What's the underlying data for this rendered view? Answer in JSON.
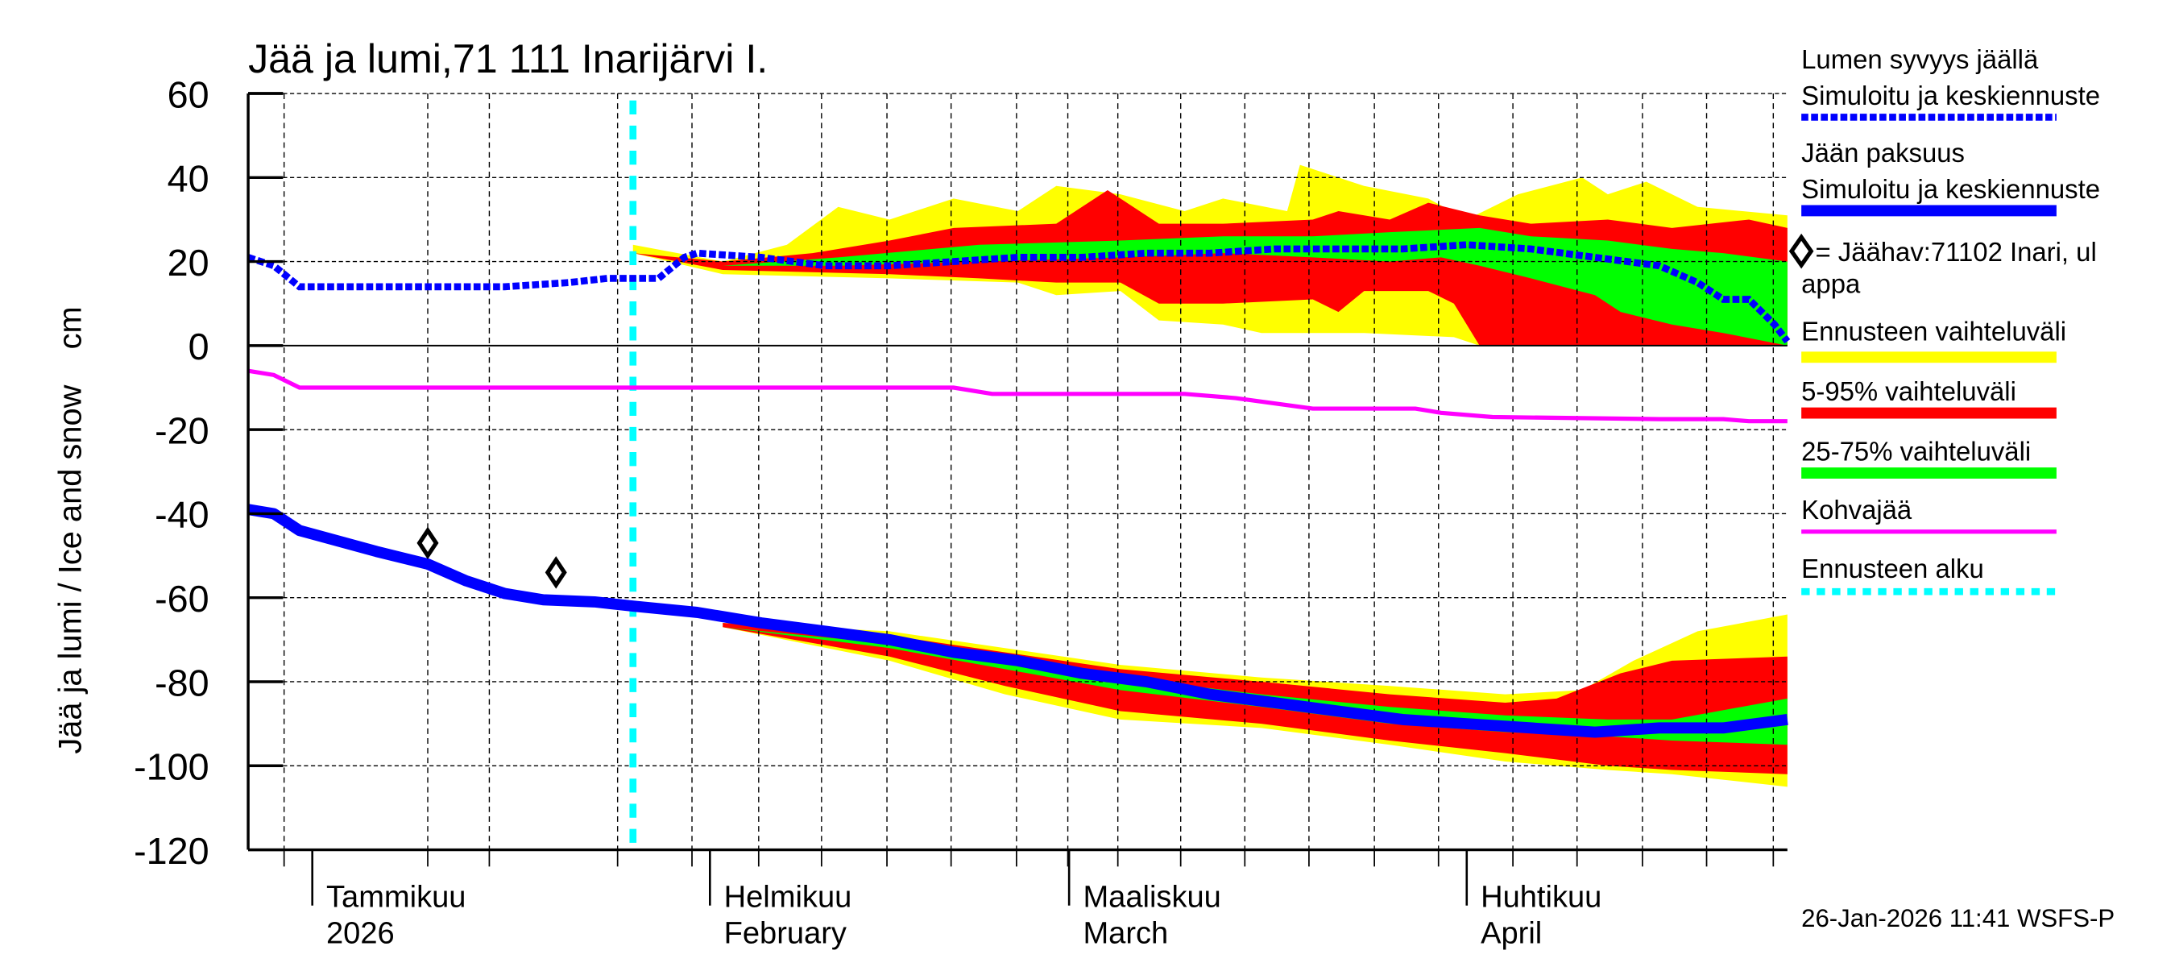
{
  "chart_data": {
    "type": "area",
    "title": "Jää ja lumi,71 111 Inarijärvi I.",
    "ylabel": "Jää ja lumi / Ice and snow    cm",
    "xlabel": "",
    "x_unit": "days from 1 Jan 2026",
    "xlim": [
      -5,
      115
    ],
    "ylim": [
      -120,
      60
    ],
    "yticks": [
      60,
      40,
      20,
      0,
      -20,
      -40,
      -60,
      -80,
      -100,
      -120
    ],
    "grid": true,
    "forecast_start_day": 25,
    "months": [
      {
        "day": 0,
        "fi": "Tammikuu",
        "en": "2026"
      },
      {
        "day": 31,
        "fi": "Helmikuu",
        "en": "February"
      },
      {
        "day": 59,
        "fi": "Maaliskuu",
        "en": "March"
      },
      {
        "day": 90,
        "fi": "Huhtikuu",
        "en": "April"
      }
    ],
    "series": {
      "snow_depth": {
        "name": "Lumen syvyys jäällä – Simuloitu ja keskiennuste",
        "color": "#0000ff",
        "points": [
          [
            -5,
            21
          ],
          [
            -3,
            19
          ],
          [
            -1,
            14
          ],
          [
            5,
            14
          ],
          [
            15,
            14
          ],
          [
            20,
            15
          ],
          [
            23,
            16
          ],
          [
            27,
            16
          ],
          [
            29,
            21
          ],
          [
            30,
            22
          ],
          [
            35,
            21
          ],
          [
            40,
            19
          ],
          [
            45,
            19
          ],
          [
            50,
            20
          ],
          [
            55,
            21
          ],
          [
            60,
            21
          ],
          [
            65,
            22
          ],
          [
            70,
            22
          ],
          [
            75,
            23
          ],
          [
            80,
            23
          ],
          [
            85,
            23
          ],
          [
            90,
            24
          ],
          [
            95,
            23
          ],
          [
            100,
            21
          ],
          [
            105,
            19
          ],
          [
            108,
            15
          ],
          [
            110,
            11
          ],
          [
            112,
            11
          ],
          [
            114,
            5
          ],
          [
            115,
            1
          ]
        ]
      },
      "ice_thickness": {
        "name": "Jään paksuus – Simuloitu ja keskiennuste",
        "color": "#0000ff",
        "points": [
          [
            -5,
            -39
          ],
          [
            -3,
            -40
          ],
          [
            -1,
            -44
          ],
          [
            5,
            -49
          ],
          [
            9,
            -52
          ],
          [
            12,
            -56
          ],
          [
            15,
            -59
          ],
          [
            18,
            -60.5
          ],
          [
            22,
            -61
          ],
          [
            25,
            -62
          ],
          [
            30,
            -63.5
          ],
          [
            35,
            -66
          ],
          [
            40,
            -68
          ],
          [
            45,
            -70
          ],
          [
            50,
            -73
          ],
          [
            55,
            -75
          ],
          [
            60,
            -78
          ],
          [
            65,
            -80
          ],
          [
            70,
            -83
          ],
          [
            75,
            -85
          ],
          [
            80,
            -87
          ],
          [
            85,
            -89
          ],
          [
            90,
            -90
          ],
          [
            95,
            -91
          ],
          [
            100,
            -92
          ],
          [
            105,
            -91
          ],
          [
            110,
            -91
          ],
          [
            115,
            -89
          ]
        ]
      },
      "slush_ice": {
        "name": "Kohvajää",
        "color": "#ff00ff",
        "points": [
          [
            -5,
            -6
          ],
          [
            -3,
            -7
          ],
          [
            -1,
            -10
          ],
          [
            50,
            -10
          ],
          [
            53,
            -11.5
          ],
          [
            68,
            -11.5
          ],
          [
            72,
            -12.5
          ],
          [
            78,
            -15
          ],
          [
            86,
            -15
          ],
          [
            88,
            -16
          ],
          [
            92,
            -17
          ],
          [
            105,
            -17.5
          ],
          [
            110,
            -17.5
          ],
          [
            112,
            -18
          ],
          [
            115,
            -18
          ]
        ]
      },
      "observations": {
        "name": "Jäähav:71102 Inari, ulappa",
        "points": [
          [
            9,
            -47
          ],
          [
            19,
            -54
          ]
        ]
      }
    },
    "bands": [
      {
        "name": "Ennusteen vaihteluväli",
        "group": "snow",
        "color": "#ffff00",
        "upper": [
          [
            25,
            24
          ],
          [
            32,
            20
          ],
          [
            37,
            24
          ],
          [
            41,
            33
          ],
          [
            45,
            30
          ],
          [
            50,
            35
          ],
          [
            55,
            32
          ],
          [
            58,
            38
          ],
          [
            63,
            36
          ],
          [
            68,
            32
          ],
          [
            71,
            35
          ],
          [
            76,
            32
          ],
          [
            77,
            43
          ],
          [
            82,
            38
          ],
          [
            87,
            35
          ],
          [
            90,
            30
          ],
          [
            94,
            36
          ],
          [
            99,
            40
          ],
          [
            101,
            36
          ],
          [
            104,
            39
          ],
          [
            108,
            33
          ],
          [
            115,
            31
          ]
        ],
        "lower": [
          [
            25,
            22
          ],
          [
            32,
            17
          ],
          [
            45,
            16
          ],
          [
            55,
            15
          ],
          [
            58,
            12
          ],
          [
            63,
            13
          ],
          [
            66,
            6
          ],
          [
            71,
            5
          ],
          [
            74,
            3
          ],
          [
            82,
            3
          ],
          [
            89,
            2
          ],
          [
            91,
            0
          ],
          [
            115,
            0
          ]
        ]
      },
      {
        "name": "5-95% vaihteluväli",
        "group": "snow",
        "color": "#ff0000",
        "upper": [
          [
            25,
            22
          ],
          [
            32,
            20
          ],
          [
            39,
            22
          ],
          [
            45,
            25
          ],
          [
            50,
            28
          ],
          [
            58,
            29
          ],
          [
            62,
            37
          ],
          [
            66,
            29
          ],
          [
            71,
            29
          ],
          [
            78,
            30
          ],
          [
            80,
            32
          ],
          [
            84,
            30
          ],
          [
            87,
            34
          ],
          [
            91,
            31
          ],
          [
            95,
            29
          ],
          [
            101,
            30
          ],
          [
            106,
            28
          ],
          [
            112,
            30
          ],
          [
            115,
            28
          ]
        ],
        "lower": [
          [
            25,
            22
          ],
          [
            32,
            18
          ],
          [
            45,
            17
          ],
          [
            52,
            16
          ],
          [
            58,
            15
          ],
          [
            63,
            15
          ],
          [
            66,
            10
          ],
          [
            71,
            10
          ],
          [
            78,
            11
          ],
          [
            80,
            8
          ],
          [
            82,
            13
          ],
          [
            87,
            13
          ],
          [
            89,
            10
          ],
          [
            91,
            0
          ],
          [
            115,
            0
          ]
        ]
      },
      {
        "name": "25-75% vaihteluväli",
        "group": "snow",
        "color": "#00ff00",
        "upper": [
          [
            32,
            19
          ],
          [
            41,
            21
          ],
          [
            52,
            24
          ],
          [
            63,
            25
          ],
          [
            71,
            26
          ],
          [
            78,
            26
          ],
          [
            84,
            27
          ],
          [
            91,
            28
          ],
          [
            95,
            26
          ],
          [
            101,
            25
          ],
          [
            106,
            23
          ],
          [
            110,
            22
          ],
          [
            115,
            20
          ]
        ],
        "lower": [
          [
            32,
            19
          ],
          [
            41,
            19
          ],
          [
            52,
            20
          ],
          [
            63,
            21
          ],
          [
            71,
            22
          ],
          [
            78,
            21
          ],
          [
            84,
            20
          ],
          [
            88,
            21
          ],
          [
            91,
            19
          ],
          [
            95,
            16
          ],
          [
            100,
            12
          ],
          [
            102,
            8
          ],
          [
            106,
            5
          ],
          [
            110,
            3
          ],
          [
            115,
            0
          ]
        ]
      },
      {
        "name": "Ennusteen vaihteluväli",
        "group": "ice",
        "color": "#ffff00",
        "upper": [
          [
            32,
            -66
          ],
          [
            45,
            -68
          ],
          [
            54,
            -72
          ],
          [
            63,
            -76
          ],
          [
            74,
            -79
          ],
          [
            84,
            -81
          ],
          [
            93,
            -83
          ],
          [
            99,
            -82
          ],
          [
            103,
            -75
          ],
          [
            108,
            -68
          ],
          [
            115,
            -64
          ]
        ],
        "lower": [
          [
            32,
            -67
          ],
          [
            45,
            -75
          ],
          [
            54,
            -83
          ],
          [
            63,
            -89
          ],
          [
            74,
            -91
          ],
          [
            84,
            -95
          ],
          [
            93,
            -99
          ],
          [
            101,
            -101
          ],
          [
            106,
            -102
          ],
          [
            115,
            -105
          ]
        ]
      },
      {
        "name": "5-95% vaihteluväli",
        "group": "ice",
        "color": "#ff0000",
        "upper": [
          [
            32,
            -66
          ],
          [
            45,
            -69
          ],
          [
            54,
            -73
          ],
          [
            63,
            -77
          ],
          [
            74,
            -80
          ],
          [
            84,
            -83
          ],
          [
            93,
            -85
          ],
          [
            97,
            -84
          ],
          [
            102,
            -78
          ],
          [
            106,
            -75
          ],
          [
            115,
            -74
          ]
        ],
        "lower": [
          [
            32,
            -67
          ],
          [
            45,
            -74
          ],
          [
            54,
            -81
          ],
          [
            63,
            -87
          ],
          [
            74,
            -90
          ],
          [
            84,
            -94
          ],
          [
            93,
            -97
          ],
          [
            101,
            -100
          ],
          [
            106,
            -101
          ],
          [
            115,
            -102
          ]
        ]
      },
      {
        "name": "25-75% vaihteluväli",
        "group": "ice",
        "color": "#00ff00",
        "upper": [
          [
            32,
            -67
          ],
          [
            45,
            -71
          ],
          [
            54,
            -75
          ],
          [
            63,
            -79
          ],
          [
            74,
            -83
          ],
          [
            84,
            -86
          ],
          [
            93,
            -88
          ],
          [
            101,
            -89
          ],
          [
            106,
            -89
          ],
          [
            115,
            -84
          ]
        ],
        "lower": [
          [
            32,
            -67
          ],
          [
            45,
            -72
          ],
          [
            54,
            -77
          ],
          [
            63,
            -82
          ],
          [
            74,
            -86
          ],
          [
            84,
            -90
          ],
          [
            93,
            -92
          ],
          [
            101,
            -93
          ],
          [
            106,
            -94
          ],
          [
            115,
            -95
          ]
        ]
      }
    ]
  },
  "legend": {
    "snow_title": "Lumen syvyys jäällä",
    "snow_sub": "Simuloitu ja keskiennuste",
    "ice_title": "Jään paksuus",
    "ice_sub": "Simuloitu ja keskiennuste",
    "obs_line1": "= Jäähav:71102 Inari, ul",
    "obs_line2": "appa",
    "range": "Ennusteen vaihteluväli",
    "p5_95": "5-95% vaihteluväli",
    "p25_75": "25-75% vaihteluväli",
    "slush": "Kohvajää",
    "forecast_start": "Ennusteen alku"
  },
  "footer": "26-Jan-2026 11:41 WSFS-P"
}
